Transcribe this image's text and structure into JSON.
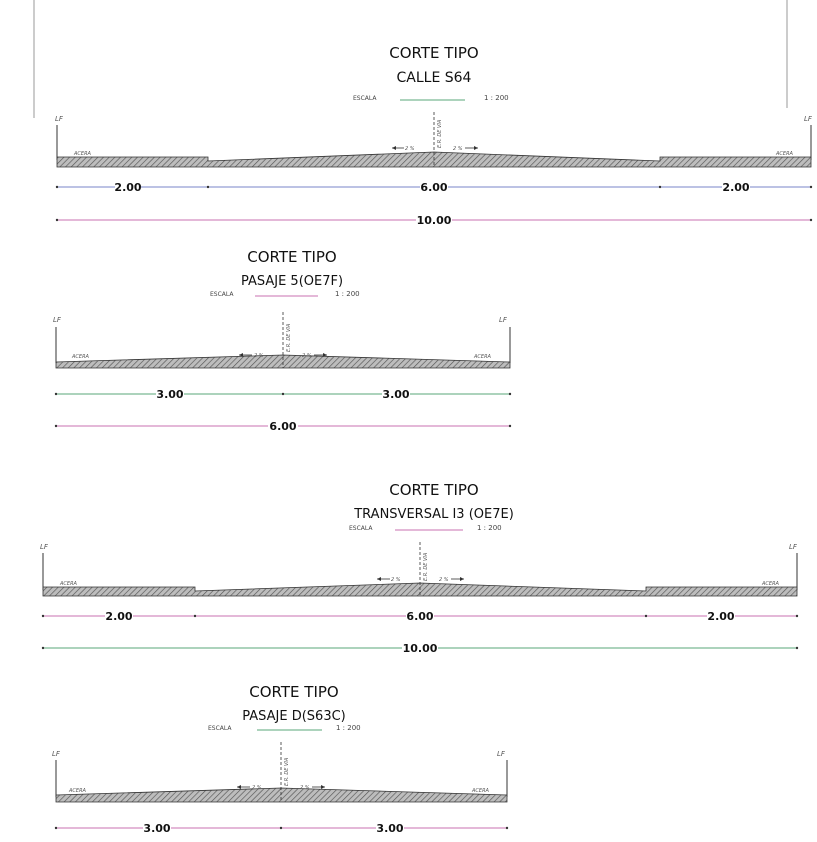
{
  "sections": [
    {
      "title": "CORTE TIPO",
      "subtitle": "CALLE S64",
      "scale_label": "ESCALA",
      "scale_value": "1 : 200",
      "lf_label": "LF",
      "axis_label": "E.R. DE VIA",
      "slope_left": "2 %",
      "slope_right": "2 %",
      "sidewalk_left": "ACERA",
      "sidewalk_right": "ACERA",
      "dims_row1": [
        "2.00",
        "6.00",
        "2.00"
      ],
      "dims_row2": [
        "10.00"
      ]
    },
    {
      "title": "CORTE TIPO",
      "subtitle": "PASAJE 5(OE7F)",
      "scale_label": "ESCALA",
      "scale_value": "1 : 200",
      "lf_label": "LF",
      "axis_label": "E.R. DE VIA",
      "slope_left": "2 %",
      "slope_right": "2 %",
      "sidewalk_left": "ACERA",
      "sidewalk_right": "ACERA",
      "dims_row1": [
        "3.00",
        "3.00"
      ],
      "dims_row2": [
        "6.00"
      ]
    },
    {
      "title": "CORTE TIPO",
      "subtitle": "TRANSVERSAL I3 (OE7E)",
      "scale_label": "ESCALA",
      "scale_value": "1 : 200",
      "lf_label": "LF",
      "axis_label": "E.R. DE VIA",
      "slope_left": "2 %",
      "slope_right": "2 %",
      "sidewalk_left": "ACERA",
      "sidewalk_right": "ACERA",
      "dims_row1": [
        "2.00",
        "6.00",
        "2.00"
      ],
      "dims_row2": [
        "10.00"
      ]
    },
    {
      "title": "CORTE TIPO",
      "subtitle": "PASAJE D(S63C)",
      "scale_label": "ESCALA",
      "scale_value": "1 : 200",
      "lf_label": "LF",
      "axis_label": "E.R. DE VIA",
      "slope_left": "2 %",
      "slope_right": "2 %",
      "sidewalk_left": "ACERA",
      "sidewalk_right": "ACERA",
      "dims_row1": [
        "3.00",
        "3.00"
      ],
      "dims_row2": []
    }
  ],
  "colors": {
    "ink": "#222222",
    "hatch": "#6e6e6e",
    "dim_pink": "#c872b0",
    "dim_green": "#5aa77a",
    "dim_blue": "#7a86c8"
  }
}
